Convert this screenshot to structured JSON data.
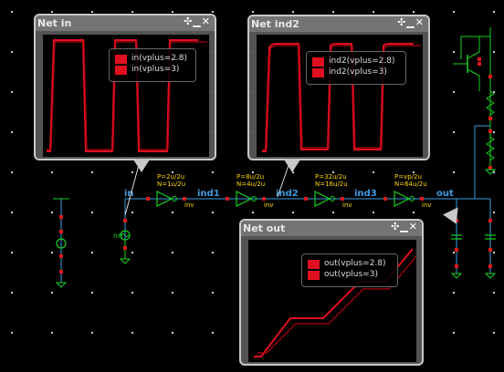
{
  "colors": {
    "wire": "#3c9be0",
    "component": "#15d020",
    "port": "#e01818",
    "label_net": "#3c9be0",
    "label_size": "#ffd700",
    "label_cell": "#ffd700",
    "trace": "#e01020"
  },
  "nets": {
    "in": "in",
    "ind1": "ind1",
    "ind2": "ind2",
    "ind3": "ind3",
    "out": "out"
  },
  "source_label": "nn",
  "inverters": [
    {
      "p_label": "P=2u/2u",
      "n_label": "N=1u/2u",
      "cell": "inv"
    },
    {
      "p_label": "P=8u/2u",
      "n_label": "N=4u/2u",
      "cell": "inv"
    },
    {
      "p_label": "P=32u/2u",
      "n_label": "N=16u/2u",
      "cell": "inv"
    },
    {
      "p_label": "P=vp/2u",
      "n_label": "N=64u/2u",
      "cell": "inv"
    }
  ],
  "popups": {
    "net_in": {
      "title": "Net in",
      "ctrls": "✣▁✕",
      "legend": [
        "in(vplus=2.8)",
        "in(vplus=3)"
      ]
    },
    "net_ind2": {
      "title": "Net ind2",
      "ctrls": "✣▁✕",
      "legend": [
        "ind2(vplus=2.8)",
        "ind2(vplus=3)"
      ]
    },
    "net_out": {
      "title": "Net out",
      "ctrls": "✣▁✕",
      "legend": [
        "out(vplus=2.8)",
        "out(vplus=3)"
      ]
    }
  }
}
